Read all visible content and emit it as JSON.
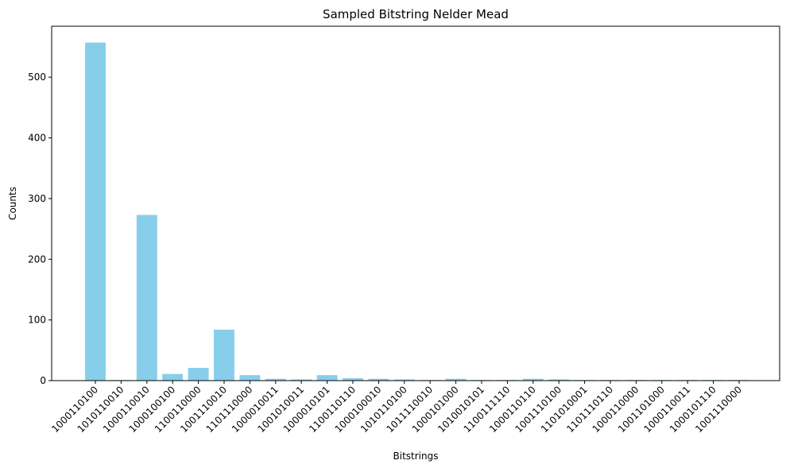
{
  "chart_data": {
    "type": "bar",
    "title": "Sampled Bitstring Nelder Mead",
    "xlabel": "Bitstrings",
    "ylabel": "Counts",
    "ylim": [
      0,
      584
    ],
    "yticks": [
      0,
      100,
      200,
      300,
      400,
      500
    ],
    "grid": false,
    "bar_color": "#87ceeb",
    "categories": [
      "1000110100",
      "1010110010",
      "1000110010",
      "1000100100",
      "1100110000",
      "1001110010",
      "1101110000",
      "1000010011",
      "1001010011",
      "1000010101",
      "1100110110",
      "1000100010",
      "1010110100",
      "1011110010",
      "1000101000",
      "1010010101",
      "1100111110",
      "1000110110",
      "1001110100",
      "1101010001",
      "1101110110",
      "1000110000",
      "1001101000",
      "1000110011",
      "1000101110",
      "1001110000"
    ],
    "values": [
      557,
      1,
      273,
      11,
      21,
      84,
      9,
      3,
      2,
      9,
      4,
      3,
      2,
      1,
      3,
      1,
      1,
      3,
      2,
      1,
      1,
      1,
      1,
      1,
      1,
      1
    ]
  }
}
